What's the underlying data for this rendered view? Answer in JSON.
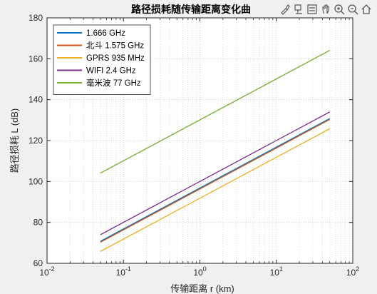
{
  "chart_data": {
    "type": "line",
    "title": "路径损耗随传输距离变化曲",
    "xlabel": "传输距离 r (km)",
    "ylabel": "路径损耗 L (dB)",
    "xscale": "log",
    "xlim": [
      0.01,
      100
    ],
    "ylim": [
      60,
      180
    ],
    "xticks": [
      0.01,
      0.1,
      1,
      10,
      100
    ],
    "xtick_labels": [
      {
        "base": "10",
        "exp": "-2"
      },
      {
        "base": "10",
        "exp": "-1"
      },
      {
        "base": "10",
        "exp": "0"
      },
      {
        "base": "10",
        "exp": "1"
      },
      {
        "base": "10",
        "exp": "2"
      }
    ],
    "yticks": [
      60,
      80,
      100,
      120,
      140,
      160,
      180
    ],
    "ytick_labels": [
      "60",
      "80",
      "100",
      "120",
      "140",
      "160",
      "180"
    ],
    "grid": true,
    "legend_position": "top-left",
    "x": [
      0.05,
      50
    ],
    "series": [
      {
        "name": "1.666 GHz",
        "color": "#0072BD",
        "values": [
          70.8,
          130.8
        ]
      },
      {
        "name": "北斗 1.575 GHz",
        "color": "#D95319",
        "values": [
          70.3,
          130.3
        ]
      },
      {
        "name": "GPRS 935 MHz",
        "color": "#EDB120",
        "values": [
          65.8,
          125.8
        ]
      },
      {
        "name": "WIFI 2.4 GHz",
        "color": "#7E2F8E",
        "values": [
          74.0,
          134.0
        ]
      },
      {
        "name": "毫米波 77 GHz",
        "color": "#77AC30",
        "values": [
          104.1,
          164.1
        ]
      }
    ]
  },
  "toolbar": {
    "buttons": [
      {
        "name": "brush-icon"
      },
      {
        "name": "datatip-icon"
      },
      {
        "name": "legend-toggle-icon"
      },
      {
        "name": "pan-hand-icon"
      },
      {
        "name": "zoom-in-icon"
      },
      {
        "name": "zoom-out-icon"
      },
      {
        "name": "home-icon"
      }
    ]
  }
}
